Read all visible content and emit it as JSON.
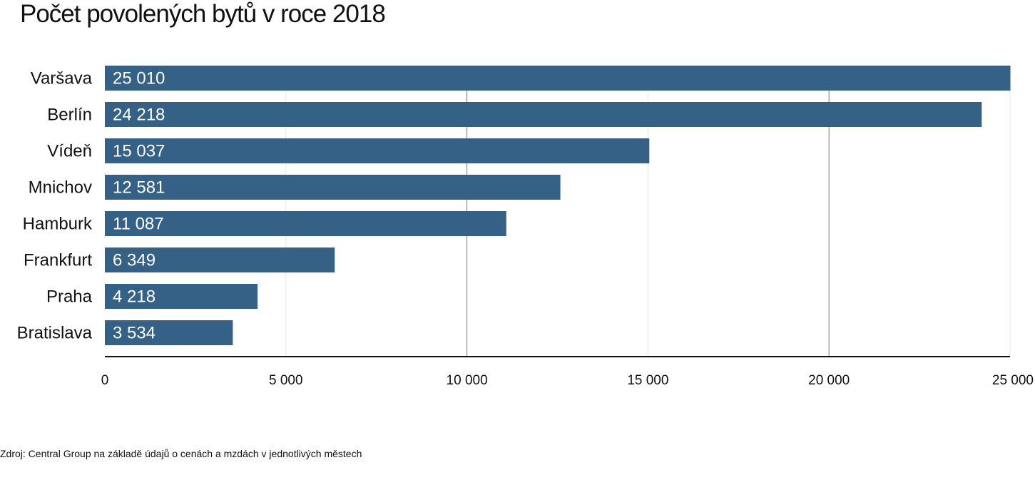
{
  "title": "Počet povolených bytů v roce 2018",
  "source": "Zdroj: Central Group na základě údajů o cenách a mzdách v jednotlivých městech",
  "colors": {
    "bar": "#356187",
    "grid": "#7a7a7a",
    "grid_light": "#e6e6e6",
    "axis": "#111111"
  },
  "chart_data": {
    "type": "bar",
    "orientation": "horizontal",
    "categories": [
      "Varšava",
      "Berlín",
      "Vídeň",
      "Mnichov",
      "Hamburk",
      "Frankfurt",
      "Praha",
      "Bratislava"
    ],
    "values": [
      25010,
      24218,
      15037,
      12581,
      11087,
      6349,
      4218,
      3534
    ],
    "value_labels": [
      "25 010",
      "24 218",
      "15 037",
      "12 581",
      "11 087",
      "6 349",
      "4 218",
      "3 534"
    ],
    "xlim": [
      0,
      25000
    ],
    "x_ticks": [
      0,
      5000,
      10000,
      15000,
      20000,
      25000
    ],
    "x_tick_labels": [
      "0",
      "5 000",
      "10 000",
      "15 000",
      "20 000",
      "25 000"
    ],
    "grid": true
  }
}
